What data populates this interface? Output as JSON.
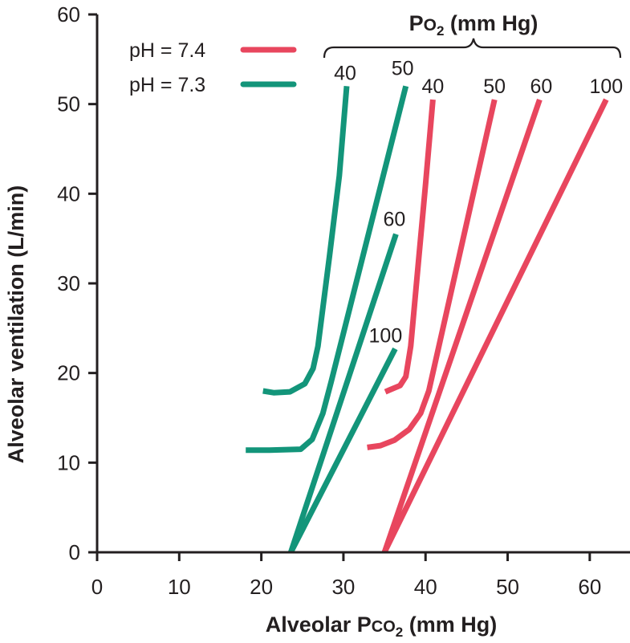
{
  "chart_data": {
    "type": "line",
    "xlabel": "Alveolar Pco2 (mm Hg)",
    "ylabel": "Alveolar ventilation (L/min)",
    "xlim": [
      0,
      65
    ],
    "ylim": [
      0,
      60
    ],
    "x_ticks": [
      "0",
      "10",
      "20",
      "30",
      "40",
      "50",
      "60"
    ],
    "y_ticks": [
      "0",
      "10",
      "20",
      "30",
      "40",
      "50",
      "60"
    ],
    "grid": false,
    "legend_position": "top-left",
    "bracket_label": "Po2 (mm Hg)",
    "colors": {
      "pH_7.4": "#e8465e",
      "pH_7.3": "#13957a",
      "axis": "#231f20"
    },
    "series": [
      {
        "name": "pH = 7.4",
        "color": "#e8465e",
        "curve_label": "40",
        "points": [
          [
            35.1,
            17.9
          ],
          [
            35.6,
            18.1
          ],
          [
            36.9,
            18.6
          ],
          [
            37.6,
            19.6
          ],
          [
            38.2,
            23
          ],
          [
            39.2,
            33
          ],
          [
            40,
            41
          ],
          [
            40.9,
            50.5
          ]
        ]
      },
      {
        "name": "pH = 7.4",
        "color": "#e8465e",
        "curve_label": "50",
        "points": [
          [
            32.9,
            11.7
          ],
          [
            34.5,
            11.9
          ],
          [
            36.2,
            12.5
          ],
          [
            38,
            13.7
          ],
          [
            39.4,
            15.5
          ],
          [
            40.4,
            18
          ],
          [
            48.4,
            50.5
          ]
        ]
      },
      {
        "name": "pH = 7.4",
        "color": "#e8465e",
        "curve_label": "60",
        "points": [
          [
            35,
            0
          ],
          [
            53.9,
            50.5
          ]
        ]
      },
      {
        "name": "pH = 7.4",
        "color": "#e8465e",
        "curve_label": "100",
        "points": [
          [
            35,
            0
          ],
          [
            62,
            50.5
          ]
        ]
      },
      {
        "name": "pH = 7.3",
        "color": "#13957a",
        "curve_label": "40",
        "points": [
          [
            20.2,
            18
          ],
          [
            21.5,
            17.8
          ],
          [
            23.5,
            17.9
          ],
          [
            25.3,
            18.8
          ],
          [
            26.3,
            20.5
          ],
          [
            26.9,
            23
          ],
          [
            28.3,
            33
          ],
          [
            29.5,
            42
          ],
          [
            30.4,
            52
          ]
        ]
      },
      {
        "name": "pH = 7.3",
        "color": "#13957a",
        "curve_label": "50",
        "points": [
          [
            18.1,
            11.4
          ],
          [
            21,
            11.4
          ],
          [
            24.8,
            11.5
          ],
          [
            26.2,
            12.6
          ],
          [
            27.5,
            15.5
          ],
          [
            28.5,
            19
          ],
          [
            37.6,
            52
          ]
        ]
      },
      {
        "name": "pH = 7.3",
        "color": "#13957a",
        "curve_label": "60",
        "points": [
          [
            23.6,
            0
          ],
          [
            36.4,
            35.5
          ]
        ]
      },
      {
        "name": "pH = 7.3",
        "color": "#13957a",
        "curve_label": "100",
        "points": [
          [
            23.6,
            0
          ],
          [
            36.3,
            22.7
          ]
        ]
      }
    ],
    "legend": [
      {
        "label": "pH = 7.4",
        "color": "#e8465e"
      },
      {
        "label": "pH = 7.3",
        "color": "#13957a"
      }
    ]
  }
}
